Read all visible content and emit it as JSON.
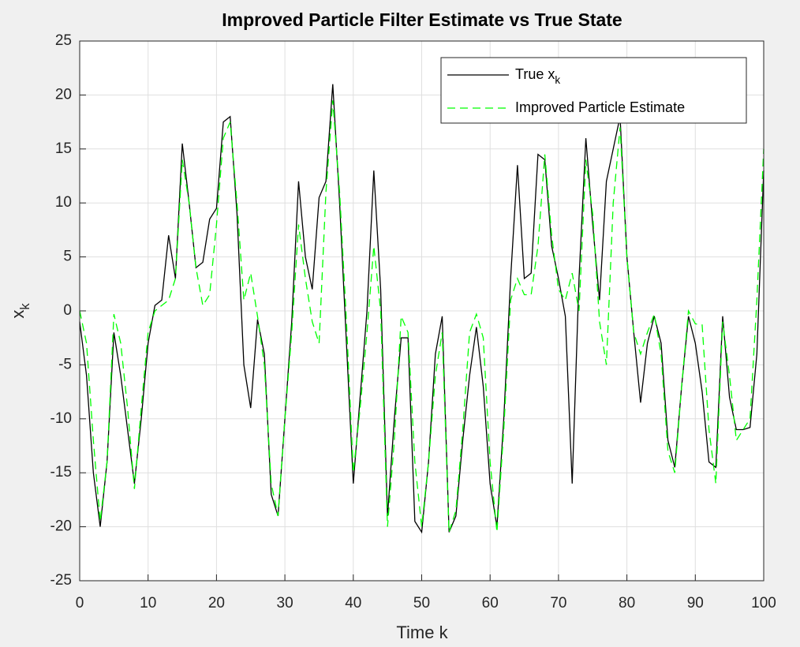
{
  "chart_data": {
    "type": "line",
    "title": "Improved Particle Filter Estimate vs True State",
    "xlabel": "Time k",
    "ylabel": "x_k",
    "x": [
      0,
      1,
      2,
      3,
      4,
      5,
      6,
      7,
      8,
      9,
      10,
      11,
      12,
      13,
      14,
      15,
      16,
      17,
      18,
      19,
      20,
      21,
      22,
      23,
      24,
      25,
      26,
      27,
      28,
      29,
      30,
      31,
      32,
      33,
      34,
      35,
      36,
      37,
      38,
      39,
      40,
      41,
      42,
      43,
      44,
      45,
      46,
      47,
      48,
      49,
      50,
      51,
      52,
      53,
      54,
      55,
      56,
      57,
      58,
      59,
      60,
      61,
      62,
      63,
      64,
      65,
      66,
      67,
      68,
      69,
      70,
      71,
      72,
      73,
      74,
      75,
      76,
      77,
      78,
      79,
      80,
      81,
      82,
      83,
      84,
      85,
      86,
      87,
      88,
      89,
      90,
      91,
      92,
      93,
      94,
      95,
      96,
      97,
      98,
      99,
      100
    ],
    "series": [
      {
        "name": "True x_k",
        "color": "#000000",
        "dashed": false,
        "values": [
          -1,
          -6,
          -15,
          -20,
          -14,
          -2,
          -6,
          -11,
          -16,
          -10,
          -3,
          0.5,
          1,
          7,
          3,
          15.5,
          10,
          4,
          4.5,
          8.5,
          9.5,
          17.5,
          18,
          9,
          -5,
          -9,
          -0.8,
          -4,
          -17,
          -19,
          -10,
          -1,
          12,
          5,
          2,
          10.5,
          12,
          21,
          10,
          -3,
          -16,
          -8,
          0,
          13,
          2,
          -19,
          -10,
          -2.5,
          -2.5,
          -19.5,
          -20.5,
          -14,
          -4,
          -0.5,
          -20.5,
          -19,
          -12,
          -6,
          -1.5,
          -7,
          -16,
          -20,
          -10,
          3,
          13.5,
          3,
          3.5,
          14.5,
          14,
          6,
          3,
          -0.5,
          -16,
          3,
          16,
          8,
          1,
          12,
          15,
          18,
          5,
          -2,
          -8.5,
          -3,
          -0.5,
          -3,
          -12,
          -14.5,
          -7,
          -0.5,
          -3,
          -7.5,
          -14,
          -14.5,
          -0.5,
          -8,
          -11,
          -11,
          -10.8,
          -4,
          13
        ]
      },
      {
        "name": "Improved Particle Estimate",
        "color": "#00ff00",
        "dashed": true,
        "values": [
          0,
          -3,
          -12,
          -19.5,
          -14,
          -0.3,
          -3,
          -9,
          -16.5,
          -9,
          -2,
          0,
          0.5,
          1,
          3,
          14,
          10,
          4,
          0.5,
          1.5,
          8,
          16,
          17.5,
          10,
          1,
          3.5,
          -0.5,
          -5,
          -16,
          -19,
          -10,
          -2,
          8,
          3,
          -1,
          -3,
          11,
          19.5,
          11,
          -1,
          -15,
          -9,
          -2,
          6,
          0,
          -20,
          -12,
          -0.5,
          -2,
          -14,
          -20,
          -14,
          -6,
          -2,
          -20.5,
          -18.5,
          -11,
          -2,
          -0.3,
          -2.5,
          -14,
          -20.5,
          -11,
          1,
          3,
          1.5,
          1.5,
          6,
          14.5,
          7,
          2,
          1,
          3.5,
          0,
          14,
          9,
          -1,
          -5,
          10,
          17,
          5,
          -2,
          -4,
          -2,
          -0.3,
          -4,
          -13,
          -15,
          -7,
          0,
          -1.2,
          -1.3,
          -11,
          -16,
          -1,
          -6,
          -12,
          -11,
          -10,
          1,
          15
        ]
      }
    ],
    "xlim": [
      0,
      100
    ],
    "xticks": [
      0,
      10,
      20,
      30,
      40,
      50,
      60,
      70,
      80,
      90,
      100
    ],
    "ylim": [
      -25,
      25
    ],
    "yticks": [
      -25,
      -20,
      -15,
      -10,
      -5,
      0,
      5,
      10,
      15,
      20,
      25
    ],
    "grid": true,
    "legend": "northeast"
  }
}
